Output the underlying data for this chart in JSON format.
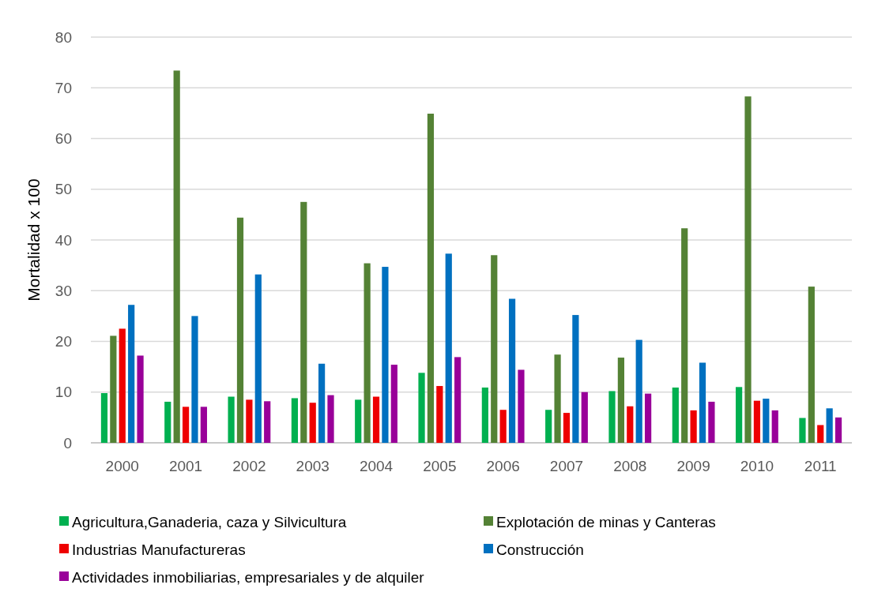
{
  "chart_data": {
    "type": "bar",
    "ylabel": "Mortalidad x 100",
    "categories": [
      "2000",
      "2001",
      "2002",
      "2003",
      "2004",
      "2005",
      "2006",
      "2007",
      "2008",
      "2009",
      "2010",
      "2011"
    ],
    "series": [
      {
        "name": "Agricultura,Ganaderia, caza y Silvicultura",
        "color": "#00b050",
        "values": [
          9.8,
          8.1,
          9.1,
          8.8,
          8.5,
          13.8,
          10.9,
          6.5,
          10.2,
          10.9,
          11,
          4.9
        ]
      },
      {
        "name": "Explotación de minas y Canteras",
        "color": "#548235",
        "values": [
          21.1,
          73.4,
          44.4,
          47.5,
          35.4,
          64.9,
          37,
          17.4,
          16.8,
          42.3,
          68.3,
          30.8
        ]
      },
      {
        "name": "Industrias Manufactureras",
        "color": "#ee0000",
        "values": [
          22.5,
          7.1,
          8.5,
          7.9,
          9.1,
          11.2,
          6.5,
          5.9,
          7.2,
          6.4,
          8.3,
          3.5
        ]
      },
      {
        "name": "Construcción",
        "color": "#0070c0",
        "values": [
          27.2,
          25,
          33.2,
          15.6,
          34.7,
          37.3,
          28.4,
          25.2,
          20.3,
          15.8,
          8.7,
          6.8
        ]
      },
      {
        "name": "Actividades inmobiliarias, empresariales y de alquiler",
        "color": "#990099",
        "values": [
          17.2,
          7.1,
          8.2,
          9.4,
          15.4,
          16.9,
          14.4,
          10,
          9.7,
          8.1,
          6.4,
          5
        ]
      }
    ],
    "ylim": [
      0,
      80
    ],
    "yticks": [
      0,
      10,
      20,
      30,
      40,
      50,
      60,
      70,
      80
    ],
    "grid": "y",
    "legend": "bottom"
  }
}
